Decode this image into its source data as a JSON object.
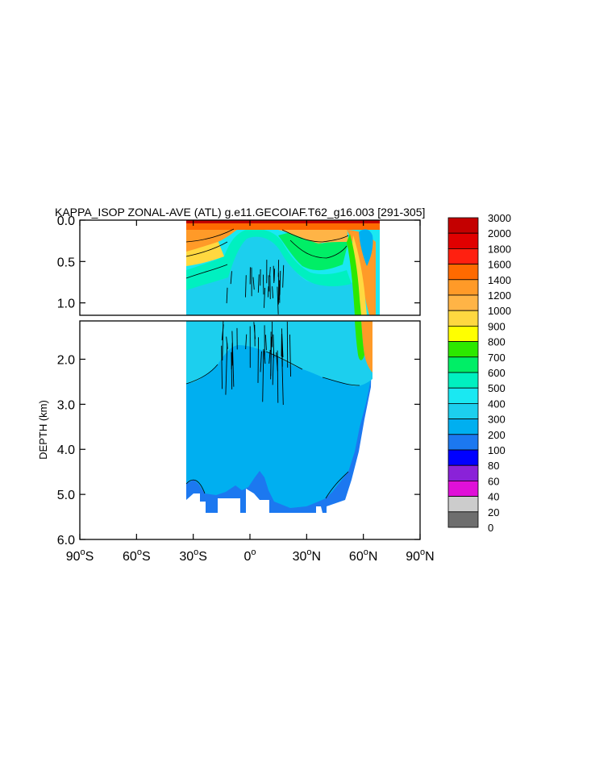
{
  "title": "KAPPA_ISOP ZONAL-AVE (ATL) g.e11.GECOIAF.T62_g16.003 [291-305]",
  "chart_data": {
    "type": "heatmap",
    "title": "KAPPA_ISOP ZONAL-AVE (ATL) g.e11.GECOIAF.T62_g16.003 [291-305]",
    "xlabel": "",
    "ylabel": "DEPTH (km)",
    "x_ticks": [
      {
        "value": -90,
        "label": "90°S",
        "num": "90",
        "hemi": "S"
      },
      {
        "value": -60,
        "label": "60°S",
        "num": "60",
        "hemi": "S"
      },
      {
        "value": -30,
        "label": "30°S",
        "num": "30",
        "hemi": "S"
      },
      {
        "value": 0,
        "label": "0°",
        "num": "0",
        "hemi": ""
      },
      {
        "value": 30,
        "label": "30°N",
        "num": "30",
        "hemi": "N"
      },
      {
        "value": 60,
        "label": "60°N",
        "num": "60",
        "hemi": "N"
      },
      {
        "value": 90,
        "label": "90°N",
        "num": "90",
        "hemi": "N"
      }
    ],
    "upper_panel": {
      "ylim": [
        0.0,
        1.15
      ],
      "y_ticks": [
        {
          "value": 0.0,
          "label": "0.0"
        },
        {
          "value": 0.5,
          "label": "0.5"
        },
        {
          "value": 1.0,
          "label": "1.0"
        }
      ]
    },
    "lower_panel": {
      "ylim": [
        1.15,
        6.0
      ],
      "y_ticks": [
        {
          "value": 2.0,
          "label": "2.0"
        },
        {
          "value": 3.0,
          "label": "3.0"
        },
        {
          "value": 4.0,
          "label": "4.0"
        },
        {
          "value": 5.0,
          "label": "5.0"
        },
        {
          "value": 6.0,
          "label": "6.0"
        }
      ]
    },
    "xlim": [
      -90,
      90
    ],
    "data_extent": {
      "lat_min": -34,
      "lat_max": 69
    },
    "colorbar": {
      "levels": [
        "3000",
        "2000",
        "1800",
        "1600",
        "1400",
        "1200",
        "1000",
        "900",
        "800",
        "700",
        "600",
        "500",
        "400",
        "300",
        "200",
        "100",
        "80",
        "60",
        "40",
        "20",
        "0"
      ],
      "colors": [
        "#c40000",
        "#e00000",
        "#ff2010",
        "#ff6a00",
        "#ff9a28",
        "#ffb446",
        "#ffd840",
        "#ffff00",
        "#2ce800",
        "#00ee66",
        "#00f0c0",
        "#1ae8f2",
        "#1ccfee",
        "#00aff0",
        "#1c78f0",
        "#0000ff",
        "#8a22d8",
        "#e010d8",
        "#cccccc",
        "#6e6e6e"
      ]
    },
    "field_colors": {
      "bottom_band": "#1c78f0",
      "abyss": "#00aff0",
      "intermediate": "#1ccfee",
      "subsurface": "#1ae8f2",
      "upper_mid": "#00f0c0",
      "mixed_layer": "#00ee66",
      "mixed_layer_green": "#2ce800",
      "surface_orange": "#ff9a28",
      "surface_light_orange": "#ffb446",
      "surface_dark_orange": "#ff6a00",
      "surface_red": "#e00000",
      "surface_dark_red": "#c40000",
      "boundary_yellow": "#ffd840"
    }
  }
}
